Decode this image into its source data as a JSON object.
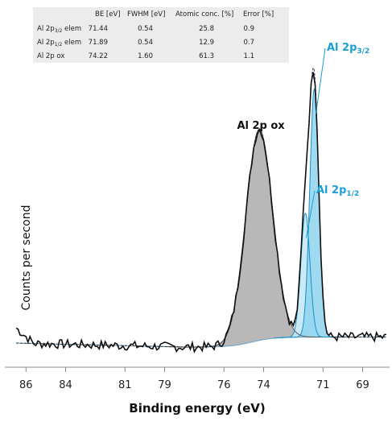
{
  "chart_data": {
    "type": "line",
    "title": "",
    "xlabel": "Binding energy (eV)",
    "ylabel": "Counts per second",
    "x_reversed": true,
    "xlim": [
      86.5,
      67.8
    ],
    "ylim": [
      0,
      1.0
    ],
    "x_ticks": [
      86,
      84,
      81,
      79,
      76,
      74,
      71,
      69
    ],
    "y_ticks_shown": false,
    "grid": false,
    "peaks": [
      {
        "label_main": "Al 2p",
        "label_sub": "3/2",
        "label_suffix": "",
        "center": 71.44,
        "fwhm": 0.54,
        "color": "#1a9fd6",
        "fill": "#8fd3ee",
        "height": 0.74
      },
      {
        "label_main": "Al 2p",
        "label_sub": "1/2",
        "label_suffix": "",
        "center": 71.89,
        "fwhm": 0.54,
        "color": "#1a9fd6",
        "fill": "#bfe6f5",
        "height": 0.37
      },
      {
        "label_main": "Al 2p ox",
        "label_sub": "",
        "label_suffix": "",
        "center": 74.22,
        "fwhm": 1.6,
        "color": "#111111",
        "fill": "#b8b8b8",
        "height": 0.63
      }
    ],
    "table": {
      "headers": [
        "",
        "BE [eV]",
        "FWHM [eV]",
        "Atomic conc. [%]",
        "Error [%]"
      ],
      "rows": [
        {
          "name_main": "Al 2p",
          "name_sub": "3/2",
          "name_suffix": " elem",
          "values": [
            "71.44",
            "0.54",
            "25.8",
            "0.9"
          ]
        },
        {
          "name_main": "Al 2p",
          "name_sub": "1/2",
          "name_suffix": " elem",
          "values": [
            "71.89",
            "0.54",
            "12.9",
            "0.7"
          ]
        },
        {
          "name_main": "Al 2p ox",
          "name_sub": "",
          "name_suffix": "",
          "values": [
            "74.22",
            "1.60",
            "61.3",
            "1.1"
          ]
        }
      ]
    },
    "colors": {
      "measured": "#111111",
      "envelope": "#333333",
      "background": "#7aa7c7",
      "table_bg": "#ececec"
    }
  }
}
